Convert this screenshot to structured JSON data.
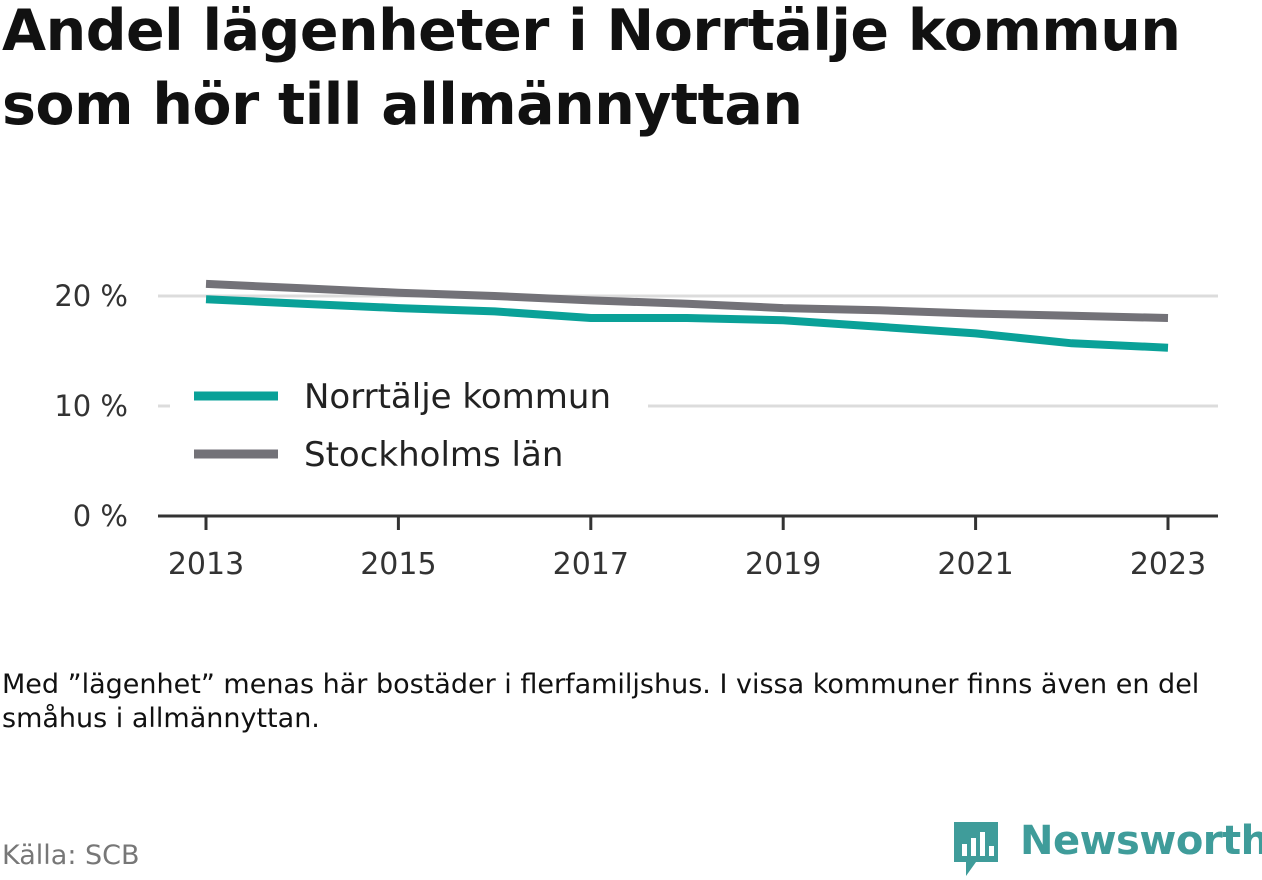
{
  "title": "Andel lägenheter i Norrtälje kommun som hör till allmännyttan",
  "note": "Med ”lägenhet” menas här bostäder i flerfamiljshus. I vissa kommuner finns även en del småhus i allmännyttan.",
  "source": "Källa: SCB",
  "brand": {
    "name": "Newsworthy",
    "icon": "newsworthy-logo-icon",
    "color": "#3f9c9a"
  },
  "chart_data": {
    "type": "line",
    "title": "Andel lägenheter i Norrtälje kommun som hör till allmännyttan",
    "xlabel": "",
    "ylabel": "",
    "x": [
      2013,
      2014,
      2015,
      2016,
      2017,
      2018,
      2019,
      2020,
      2021,
      2022,
      2023
    ],
    "x_ticks": [
      "2013",
      "2015",
      "2017",
      "2019",
      "2021",
      "2023"
    ],
    "y_ticks": [
      "0 %",
      "10 %",
      "20 %"
    ],
    "ylim": [
      0,
      20
    ],
    "grid": true,
    "legend_position": "left-middle",
    "series": [
      {
        "name": "Norrtälje kommun",
        "color": "#0aa198",
        "values": [
          19.7,
          19.3,
          18.9,
          18.6,
          18.0,
          18.0,
          17.8,
          17.2,
          16.6,
          15.7,
          15.3
        ]
      },
      {
        "name": "Stockholms län",
        "color": "#737278",
        "values": [
          21.1,
          20.7,
          20.3,
          20.0,
          19.6,
          19.3,
          18.9,
          18.7,
          18.4,
          18.2,
          18.0
        ]
      }
    ]
  }
}
